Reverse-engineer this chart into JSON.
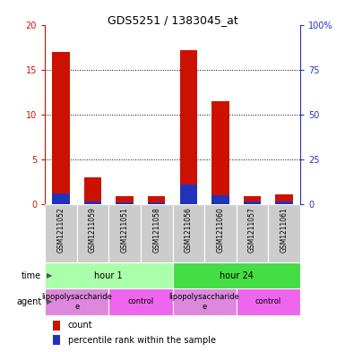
{
  "title": "GDS5251 / 1383045_at",
  "samples": [
    "GSM1211052",
    "GSM1211059",
    "GSM1211051",
    "GSM1211058",
    "GSM1211056",
    "GSM1211060",
    "GSM1211057",
    "GSM1211061"
  ],
  "count_values": [
    17.0,
    3.0,
    0.9,
    0.9,
    17.2,
    11.5,
    0.9,
    1.1
  ],
  "percentile_values": [
    6.0,
    1.5,
    1.0,
    1.0,
    11.0,
    5.0,
    1.25,
    1.5
  ],
  "ylim_left": [
    0,
    20
  ],
  "ylim_right": [
    0,
    100
  ],
  "yticks_left": [
    0,
    5,
    10,
    15,
    20
  ],
  "yticks_right": [
    0,
    25,
    50,
    75,
    100
  ],
  "ytick_labels_left": [
    "0",
    "5",
    "10",
    "15",
    "20"
  ],
  "ytick_labels_right": [
    "0",
    "25",
    "50",
    "75",
    "100%"
  ],
  "bar_color_red": "#cc1100",
  "bar_color_blue": "#2233bb",
  "bar_width": 0.55,
  "plot_bg": "#ffffff",
  "sample_bg": "#cccccc",
  "time_groups": [
    {
      "label": "hour 1",
      "start": 0,
      "end": 4,
      "color": "#aaffaa"
    },
    {
      "label": "hour 24",
      "start": 4,
      "end": 8,
      "color": "#44dd44"
    }
  ],
  "agent_groups": [
    {
      "label": "lipopolysaccharide\ne",
      "start": 0,
      "end": 2,
      "color": "#dd88dd"
    },
    {
      "label": "control",
      "start": 2,
      "end": 4,
      "color": "#ee66ee"
    },
    {
      "label": "lipopolysaccharide\ne",
      "start": 4,
      "end": 6,
      "color": "#dd88dd"
    },
    {
      "label": "control",
      "start": 6,
      "end": 8,
      "color": "#ee66ee"
    }
  ],
  "legend_count_label": "count",
  "legend_pct_label": "percentile rank within the sample",
  "time_label": "time",
  "agent_label": "agent",
  "left_axis_color": "#cc1100",
  "right_axis_color": "#2233bb",
  "title_fontsize": 9,
  "tick_fontsize": 7,
  "label_fontsize": 7,
  "bar_fontsize": 6
}
